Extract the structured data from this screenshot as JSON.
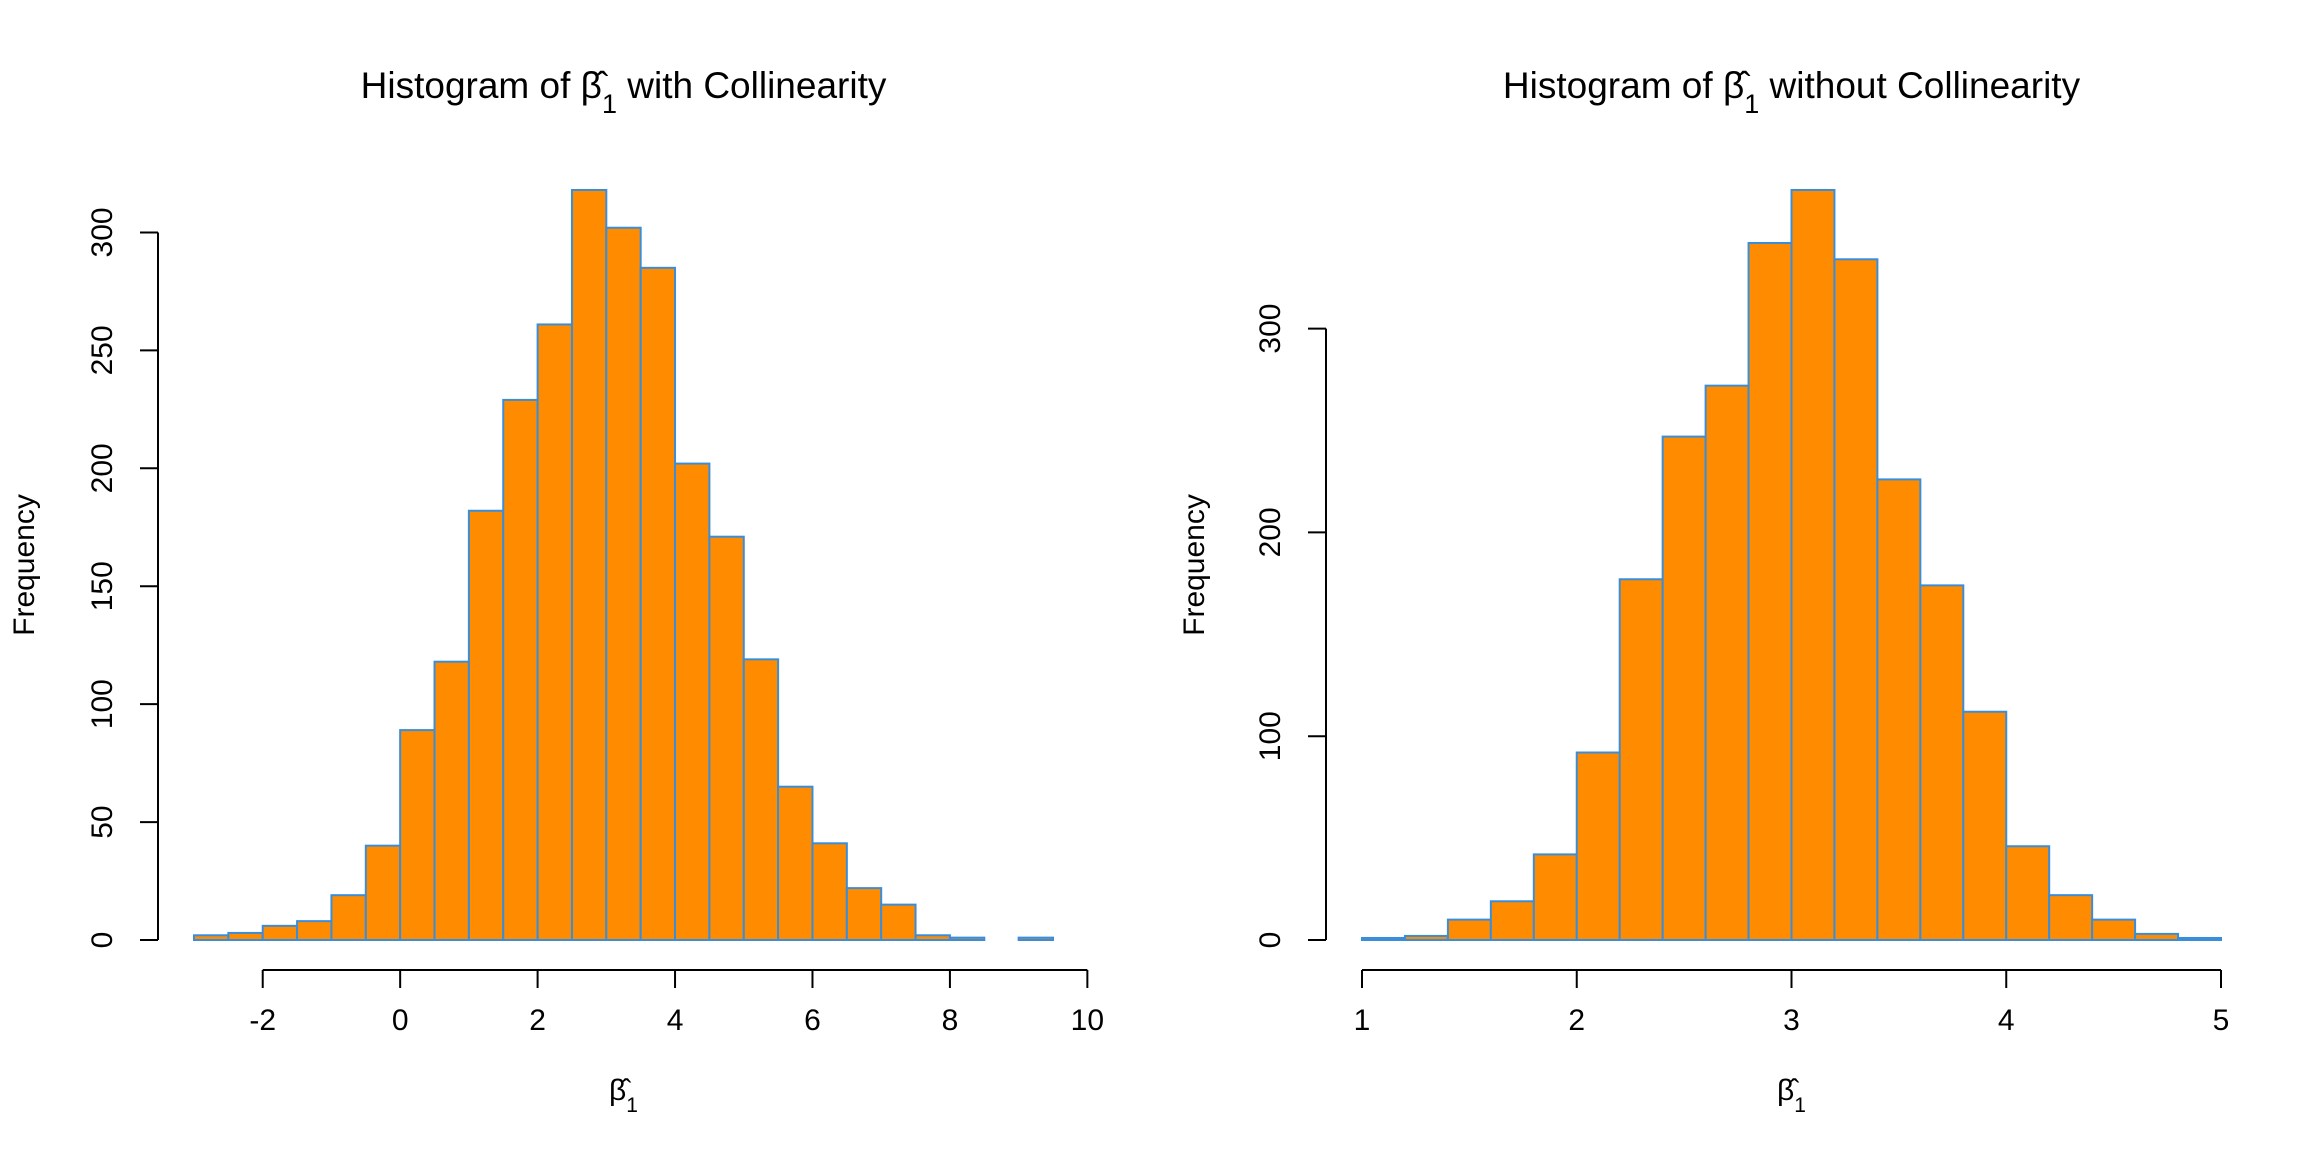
{
  "colors": {
    "bar_fill": "#FF8C00",
    "bar_border": "#3A8DD9",
    "axis": "#000000",
    "background": "#FFFFFF"
  },
  "chart_data": [
    {
      "type": "histogram",
      "title_prefix": "Histogram of ",
      "title_symbol": "β̂",
      "title_subscript": "1",
      "title_suffix": " with Collinearity",
      "xlabel_symbol": "β̂",
      "xlabel_subscript": "1",
      "ylabel": "Frequency",
      "bin_edges": [
        -3,
        -2.5,
        -2,
        -1.5,
        -1,
        -0.5,
        0,
        0.5,
        1,
        1.5,
        2,
        2.5,
        3,
        3.5,
        4,
        4.5,
        5,
        5.5,
        6,
        6.5,
        7,
        7.5,
        8,
        8.5,
        9,
        9.5
      ],
      "counts": [
        2,
        3,
        6,
        8,
        19,
        40,
        89,
        118,
        182,
        229,
        261,
        318,
        302,
        285,
        202,
        171,
        119,
        65,
        41,
        22,
        15,
        2,
        1,
        0,
        1
      ],
      "x_ticks": [
        -2,
        0,
        2,
        4,
        6,
        8,
        10
      ],
      "x_tick_labels": [
        "-2",
        "0",
        "2",
        "4",
        "6",
        "8",
        "10"
      ],
      "y_ticks": [
        0,
        50,
        100,
        150,
        200,
        250,
        300
      ],
      "y_tick_labels": [
        "0",
        "50",
        "100",
        "150",
        "200",
        "250",
        "300"
      ],
      "xlim": [
        -3,
        9.5
      ],
      "ylim": [
        0,
        318
      ],
      "x_axis_range": [
        -2,
        10
      ],
      "y_axis_range": [
        0,
        300
      ],
      "grid": false
    },
    {
      "type": "histogram",
      "title_prefix": "Histogram of ",
      "title_symbol": "β̂",
      "title_subscript": "1",
      "title_suffix": " without Collinearity",
      "xlabel_symbol": "β̂",
      "xlabel_subscript": "1",
      "ylabel": "Frequency",
      "bin_edges": [
        1.0,
        1.2,
        1.4,
        1.6,
        1.8,
        2.0,
        2.2,
        2.4,
        2.6,
        2.8,
        3.0,
        3.2,
        3.4,
        3.6,
        3.8,
        4.0,
        4.2,
        4.4,
        4.6,
        4.8,
        5.0
      ],
      "counts": [
        1,
        2,
        10,
        19,
        42,
        92,
        177,
        247,
        272,
        342,
        368,
        334,
        226,
        174,
        112,
        46,
        22,
        10,
        3,
        1
      ],
      "x_ticks": [
        1,
        2,
        3,
        4,
        5
      ],
      "x_tick_labels": [
        "1",
        "2",
        "3",
        "4",
        "5"
      ],
      "y_ticks": [
        0,
        100,
        200,
        300
      ],
      "y_tick_labels": [
        "0",
        "100",
        "200",
        "300"
      ],
      "xlim": [
        1,
        5
      ],
      "ylim": [
        0,
        368
      ],
      "x_axis_range": [
        1,
        5
      ],
      "y_axis_range": [
        0,
        300
      ],
      "grid": false
    }
  ]
}
